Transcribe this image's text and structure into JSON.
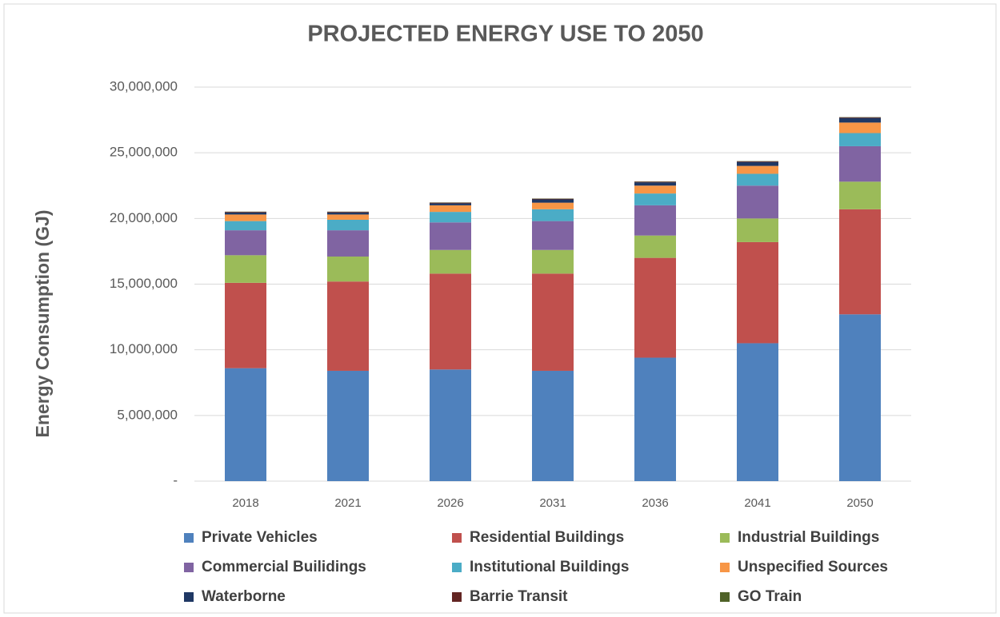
{
  "chart_data": {
    "type": "stacked_bar",
    "title": "PROJECTED ENERGY USE TO 2050",
    "y_label": "Energy Consumption (GJ)",
    "categories": [
      "2018",
      "2021",
      "2026",
      "2031",
      "2036",
      "2041",
      "2050"
    ],
    "series": [
      {
        "name": "Private Vehicles",
        "color": "#4f81bd",
        "values": [
          8600000,
          8400000,
          8500000,
          8400000,
          9400000,
          10500000,
          12700000
        ]
      },
      {
        "name": "Residential Buildings",
        "color": "#c0504d",
        "values": [
          6500000,
          6800000,
          7300000,
          7400000,
          7600000,
          7700000,
          8000000
        ]
      },
      {
        "name": "Industrial Buildings",
        "color": "#9bbb59",
        "values": [
          2100000,
          1900000,
          1800000,
          1800000,
          1700000,
          1800000,
          2100000
        ]
      },
      {
        "name": "Commercial Builidings",
        "color": "#8064a2",
        "values": [
          1900000,
          2000000,
          2100000,
          2200000,
          2300000,
          2500000,
          2700000
        ]
      },
      {
        "name": "Institutional Buildings",
        "color": "#4bacc6",
        "values": [
          700000,
          800000,
          800000,
          900000,
          900000,
          900000,
          1000000
        ]
      },
      {
        "name": "Unspecified Sources",
        "color": "#f79646",
        "values": [
          500000,
          400000,
          500000,
          500000,
          600000,
          600000,
          800000
        ]
      },
      {
        "name": "Waterborne",
        "color": "#1f3864",
        "values": [
          150000,
          150000,
          150000,
          250000,
          250000,
          300000,
          350000
        ]
      },
      {
        "name": "Barrie Transit",
        "color": "#632523",
        "values": [
          50000,
          50000,
          50000,
          50000,
          50000,
          50000,
          50000
        ]
      },
      {
        "name": "GO Train",
        "color": "#4f6228",
        "values": [
          20000,
          20000,
          20000,
          20000,
          20000,
          20000,
          20000
        ]
      }
    ],
    "ylim": [
      0,
      30000000
    ],
    "yticks": [
      {
        "value": 0,
        "label": "-"
      },
      {
        "value": 5000000,
        "label": "5,000,000"
      },
      {
        "value": 10000000,
        "label": "10,000,000"
      },
      {
        "value": 15000000,
        "label": "15,000,000"
      },
      {
        "value": 20000000,
        "label": "20,000,000"
      },
      {
        "value": 25000000,
        "label": "25,000,000"
      },
      {
        "value": 30000000,
        "label": "30,000,000"
      }
    ],
    "grid": true
  }
}
